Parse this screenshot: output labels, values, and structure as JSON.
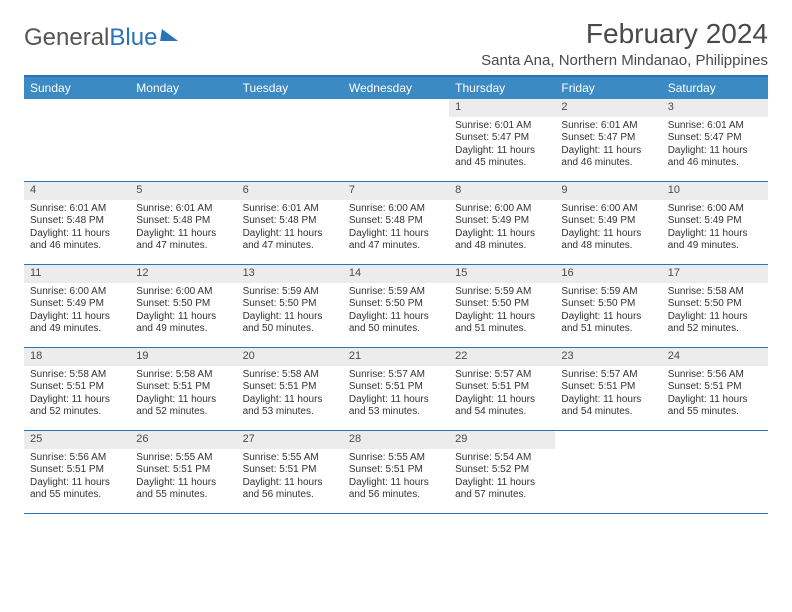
{
  "logo": {
    "text_gray": "General",
    "text_blue": "Blue"
  },
  "header": {
    "month_title": "February 2024",
    "location": "Santa Ana, Northern Mindanao, Philippines"
  },
  "colors": {
    "header_blue": "#3b8ac4",
    "border_blue": "#2b72b8",
    "daynum_bg": "#ececec",
    "text": "#333333"
  },
  "day_names": [
    "Sunday",
    "Monday",
    "Tuesday",
    "Wednesday",
    "Thursday",
    "Friday",
    "Saturday"
  ],
  "weeks": [
    [
      {
        "n": "",
        "sr": "",
        "ss": "",
        "dl": ""
      },
      {
        "n": "",
        "sr": "",
        "ss": "",
        "dl": ""
      },
      {
        "n": "",
        "sr": "",
        "ss": "",
        "dl": ""
      },
      {
        "n": "",
        "sr": "",
        "ss": "",
        "dl": ""
      },
      {
        "n": "1",
        "sr": "Sunrise: 6:01 AM",
        "ss": "Sunset: 5:47 PM",
        "dl": "Daylight: 11 hours and 45 minutes."
      },
      {
        "n": "2",
        "sr": "Sunrise: 6:01 AM",
        "ss": "Sunset: 5:47 PM",
        "dl": "Daylight: 11 hours and 46 minutes."
      },
      {
        "n": "3",
        "sr": "Sunrise: 6:01 AM",
        "ss": "Sunset: 5:47 PM",
        "dl": "Daylight: 11 hours and 46 minutes."
      }
    ],
    [
      {
        "n": "4",
        "sr": "Sunrise: 6:01 AM",
        "ss": "Sunset: 5:48 PM",
        "dl": "Daylight: 11 hours and 46 minutes."
      },
      {
        "n": "5",
        "sr": "Sunrise: 6:01 AM",
        "ss": "Sunset: 5:48 PM",
        "dl": "Daylight: 11 hours and 47 minutes."
      },
      {
        "n": "6",
        "sr": "Sunrise: 6:01 AM",
        "ss": "Sunset: 5:48 PM",
        "dl": "Daylight: 11 hours and 47 minutes."
      },
      {
        "n": "7",
        "sr": "Sunrise: 6:00 AM",
        "ss": "Sunset: 5:48 PM",
        "dl": "Daylight: 11 hours and 47 minutes."
      },
      {
        "n": "8",
        "sr": "Sunrise: 6:00 AM",
        "ss": "Sunset: 5:49 PM",
        "dl": "Daylight: 11 hours and 48 minutes."
      },
      {
        "n": "9",
        "sr": "Sunrise: 6:00 AM",
        "ss": "Sunset: 5:49 PM",
        "dl": "Daylight: 11 hours and 48 minutes."
      },
      {
        "n": "10",
        "sr": "Sunrise: 6:00 AM",
        "ss": "Sunset: 5:49 PM",
        "dl": "Daylight: 11 hours and 49 minutes."
      }
    ],
    [
      {
        "n": "11",
        "sr": "Sunrise: 6:00 AM",
        "ss": "Sunset: 5:49 PM",
        "dl": "Daylight: 11 hours and 49 minutes."
      },
      {
        "n": "12",
        "sr": "Sunrise: 6:00 AM",
        "ss": "Sunset: 5:50 PM",
        "dl": "Daylight: 11 hours and 49 minutes."
      },
      {
        "n": "13",
        "sr": "Sunrise: 5:59 AM",
        "ss": "Sunset: 5:50 PM",
        "dl": "Daylight: 11 hours and 50 minutes."
      },
      {
        "n": "14",
        "sr": "Sunrise: 5:59 AM",
        "ss": "Sunset: 5:50 PM",
        "dl": "Daylight: 11 hours and 50 minutes."
      },
      {
        "n": "15",
        "sr": "Sunrise: 5:59 AM",
        "ss": "Sunset: 5:50 PM",
        "dl": "Daylight: 11 hours and 51 minutes."
      },
      {
        "n": "16",
        "sr": "Sunrise: 5:59 AM",
        "ss": "Sunset: 5:50 PM",
        "dl": "Daylight: 11 hours and 51 minutes."
      },
      {
        "n": "17",
        "sr": "Sunrise: 5:58 AM",
        "ss": "Sunset: 5:50 PM",
        "dl": "Daylight: 11 hours and 52 minutes."
      }
    ],
    [
      {
        "n": "18",
        "sr": "Sunrise: 5:58 AM",
        "ss": "Sunset: 5:51 PM",
        "dl": "Daylight: 11 hours and 52 minutes."
      },
      {
        "n": "19",
        "sr": "Sunrise: 5:58 AM",
        "ss": "Sunset: 5:51 PM",
        "dl": "Daylight: 11 hours and 52 minutes."
      },
      {
        "n": "20",
        "sr": "Sunrise: 5:58 AM",
        "ss": "Sunset: 5:51 PM",
        "dl": "Daylight: 11 hours and 53 minutes."
      },
      {
        "n": "21",
        "sr": "Sunrise: 5:57 AM",
        "ss": "Sunset: 5:51 PM",
        "dl": "Daylight: 11 hours and 53 minutes."
      },
      {
        "n": "22",
        "sr": "Sunrise: 5:57 AM",
        "ss": "Sunset: 5:51 PM",
        "dl": "Daylight: 11 hours and 54 minutes."
      },
      {
        "n": "23",
        "sr": "Sunrise: 5:57 AM",
        "ss": "Sunset: 5:51 PM",
        "dl": "Daylight: 11 hours and 54 minutes."
      },
      {
        "n": "24",
        "sr": "Sunrise: 5:56 AM",
        "ss": "Sunset: 5:51 PM",
        "dl": "Daylight: 11 hours and 55 minutes."
      }
    ],
    [
      {
        "n": "25",
        "sr": "Sunrise: 5:56 AM",
        "ss": "Sunset: 5:51 PM",
        "dl": "Daylight: 11 hours and 55 minutes."
      },
      {
        "n": "26",
        "sr": "Sunrise: 5:55 AM",
        "ss": "Sunset: 5:51 PM",
        "dl": "Daylight: 11 hours and 55 minutes."
      },
      {
        "n": "27",
        "sr": "Sunrise: 5:55 AM",
        "ss": "Sunset: 5:51 PM",
        "dl": "Daylight: 11 hours and 56 minutes."
      },
      {
        "n": "28",
        "sr": "Sunrise: 5:55 AM",
        "ss": "Sunset: 5:51 PM",
        "dl": "Daylight: 11 hours and 56 minutes."
      },
      {
        "n": "29",
        "sr": "Sunrise: 5:54 AM",
        "ss": "Sunset: 5:52 PM",
        "dl": "Daylight: 11 hours and 57 minutes."
      },
      {
        "n": "",
        "sr": "",
        "ss": "",
        "dl": ""
      },
      {
        "n": "",
        "sr": "",
        "ss": "",
        "dl": ""
      }
    ]
  ]
}
